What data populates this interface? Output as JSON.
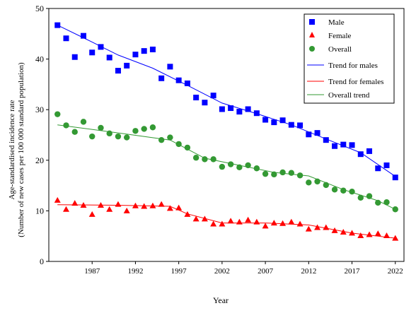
{
  "chart_data": {
    "type": "scatter",
    "xlabel": "Year",
    "ylabel_line1": "Age-standardised incidence rate",
    "ylabel_line2": "(Number of new cases per 100 000 standard population)",
    "xlim": [
      1982,
      2023
    ],
    "ylim": [
      0,
      50
    ],
    "x_ticks": [
      1987,
      1992,
      1997,
      2002,
      2007,
      2012,
      2017,
      2022
    ],
    "y_ticks": [
      0,
      10,
      20,
      30,
      40,
      50
    ],
    "grid": false,
    "legend_position": "top-right",
    "colors": {
      "male": "#0000ff",
      "female": "#ff0000",
      "overall": "#339933",
      "male_trend": "#0000ff",
      "female_trend": "#ff0000",
      "overall_trend": "#339933"
    },
    "x": [
      1983,
      1984,
      1985,
      1986,
      1987,
      1988,
      1989,
      1990,
      1991,
      1992,
      1993,
      1994,
      1995,
      1996,
      1997,
      1998,
      1999,
      2000,
      2001,
      2002,
      2003,
      2004,
      2005,
      2006,
      2007,
      2008,
      2009,
      2010,
      2011,
      2012,
      2013,
      2014,
      2015,
      2016,
      2017,
      2018,
      2019,
      2020,
      2021,
      2022
    ],
    "series": [
      {
        "name": "Male",
        "marker": "square",
        "values": [
          46.7,
          44.1,
          40.4,
          44.6,
          41.3,
          42.4,
          40.3,
          37.7,
          38.7,
          40.9,
          41.6,
          41.9,
          36.2,
          38.5,
          35.8,
          35.2,
          32.4,
          31.4,
          32.8,
          30.1,
          30.3,
          29.6,
          30.1,
          29.3,
          28.0,
          27.5,
          27.9,
          27.0,
          26.9,
          25.1,
          25.4,
          24.0,
          22.8,
          23.1,
          23.0,
          21.2,
          21.8,
          18.4,
          19.0,
          16.6
        ]
      },
      {
        "name": "Female",
        "marker": "triangle",
        "values": [
          12.1,
          10.3,
          11.5,
          11.1,
          9.3,
          11.1,
          10.3,
          11.3,
          10.0,
          11.0,
          10.9,
          11.0,
          11.3,
          10.5,
          10.6,
          9.3,
          8.4,
          8.4,
          7.4,
          7.4,
          8.0,
          7.8,
          8.2,
          7.8,
          7.0,
          7.6,
          7.5,
          7.8,
          7.4,
          6.4,
          6.7,
          6.7,
          6.1,
          5.8,
          5.6,
          5.1,
          5.3,
          5.5,
          5.1,
          4.6
        ]
      },
      {
        "name": "Overall",
        "marker": "circle",
        "values": [
          29.1,
          26.9,
          25.6,
          27.6,
          24.7,
          26.4,
          25.3,
          24.7,
          24.5,
          25.8,
          26.2,
          26.5,
          24.0,
          24.5,
          23.2,
          22.5,
          20.5,
          20.2,
          20.2,
          18.7,
          19.2,
          18.6,
          19.0,
          18.4,
          17.3,
          17.2,
          17.6,
          17.5,
          17.0,
          15.6,
          15.8,
          15.1,
          14.2,
          14.0,
          13.8,
          12.6,
          12.9,
          11.6,
          11.7,
          10.3
        ]
      }
    ],
    "trends": [
      {
        "name": "Trend for males",
        "x": [
          1983,
          1986,
          1990,
          1994,
          1998,
          2002,
          2006,
          2010,
          2014,
          2018,
          2022
        ],
        "values": [
          46.7,
          44.2,
          40.8,
          38.2,
          34.8,
          31.3,
          29.2,
          27.0,
          24.2,
          21.5,
          16.8
        ]
      },
      {
        "name": "Trend for females",
        "x": [
          1983,
          1990,
          1996,
          1998,
          2002,
          2007,
          2012,
          2017,
          2022
        ],
        "values": [
          11.2,
          11.1,
          10.9,
          9.4,
          7.6,
          7.6,
          7.2,
          5.6,
          4.6
        ]
      },
      {
        "name": "Overall trend",
        "x": [
          1983,
          1990,
          1996,
          2000,
          2004,
          2008,
          2012,
          2016,
          2020,
          2022
        ],
        "values": [
          27.0,
          25.4,
          24.0,
          20.4,
          19.0,
          17.6,
          16.9,
          14.2,
          12.0,
          10.3
        ]
      }
    ]
  }
}
